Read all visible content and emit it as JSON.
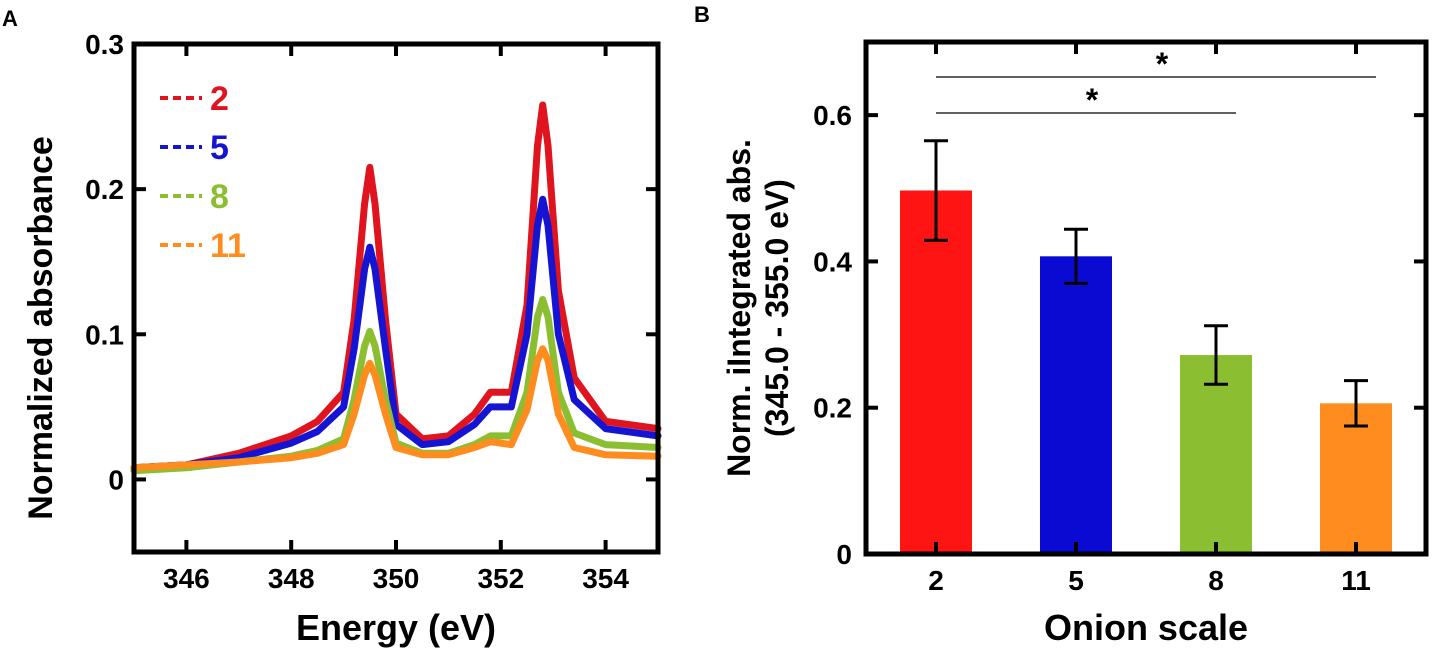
{
  "chart_data": [
    {
      "type": "line",
      "panel_label": "A",
      "title": "",
      "xlabel": "Energy (eV)",
      "ylabel": "Normalized absorbance",
      "xlim": [
        345,
        355
      ],
      "ylim": [
        -0.05,
        0.3
      ],
      "x_ticks": [
        346,
        348,
        350,
        352,
        354
      ],
      "y_ticks": [
        0,
        0.1,
        0.2,
        0.3
      ],
      "x_tick_labels": [
        "346",
        "348",
        "350",
        "352",
        "354"
      ],
      "y_tick_labels": [
        "0",
        "0.1",
        "0.2",
        "0.3"
      ],
      "grid": false,
      "legend_position": "top-left",
      "series": [
        {
          "name": "2",
          "color": "#e0141e",
          "x": [
            345.0,
            346.0,
            347.0,
            348.0,
            348.5,
            349.0,
            349.2,
            349.4,
            349.5,
            349.6,
            349.8,
            350.0,
            350.5,
            351.0,
            351.5,
            351.8,
            352.2,
            352.5,
            352.7,
            352.8,
            352.9,
            353.1,
            353.4,
            354.0,
            355.0
          ],
          "y": [
            0.008,
            0.01,
            0.018,
            0.03,
            0.04,
            0.06,
            0.11,
            0.19,
            0.215,
            0.19,
            0.11,
            0.045,
            0.028,
            0.03,
            0.045,
            0.06,
            0.06,
            0.12,
            0.23,
            0.258,
            0.23,
            0.13,
            0.07,
            0.04,
            0.035
          ]
        },
        {
          "name": "5",
          "color": "#1414d2",
          "x": [
            345.0,
            346.0,
            347.0,
            348.0,
            348.5,
            349.0,
            349.2,
            349.4,
            349.5,
            349.6,
            349.8,
            350.0,
            350.5,
            351.0,
            351.5,
            351.8,
            352.2,
            352.5,
            352.7,
            352.8,
            352.9,
            353.1,
            353.4,
            354.0,
            355.0
          ],
          "y": [
            0.008,
            0.01,
            0.015,
            0.025,
            0.033,
            0.05,
            0.09,
            0.145,
            0.16,
            0.145,
            0.09,
            0.038,
            0.024,
            0.026,
            0.038,
            0.05,
            0.05,
            0.1,
            0.175,
            0.193,
            0.175,
            0.1,
            0.055,
            0.035,
            0.03
          ]
        },
        {
          "name": "8",
          "color": "#8cbe32",
          "x": [
            345.0,
            346.0,
            347.0,
            348.0,
            348.5,
            349.0,
            349.2,
            349.4,
            349.5,
            349.6,
            349.8,
            350.0,
            350.5,
            351.0,
            351.5,
            351.8,
            352.2,
            352.5,
            352.7,
            352.8,
            352.9,
            353.1,
            353.4,
            354.0,
            355.0
          ],
          "y": [
            0.006,
            0.008,
            0.012,
            0.016,
            0.02,
            0.028,
            0.055,
            0.092,
            0.102,
            0.092,
            0.055,
            0.025,
            0.018,
            0.018,
            0.024,
            0.03,
            0.03,
            0.06,
            0.112,
            0.124,
            0.112,
            0.06,
            0.032,
            0.024,
            0.022
          ]
        },
        {
          "name": "11",
          "color": "#ff8c1e",
          "x": [
            345.0,
            346.0,
            347.0,
            348.0,
            348.5,
            349.0,
            349.2,
            349.4,
            349.5,
            349.6,
            349.8,
            350.0,
            350.5,
            351.0,
            351.5,
            351.8,
            352.2,
            352.5,
            352.7,
            352.8,
            352.9,
            353.1,
            353.4,
            354.0,
            355.0
          ],
          "y": [
            0.008,
            0.01,
            0.012,
            0.015,
            0.018,
            0.024,
            0.045,
            0.072,
            0.08,
            0.072,
            0.045,
            0.022,
            0.017,
            0.017,
            0.022,
            0.026,
            0.024,
            0.048,
            0.082,
            0.09,
            0.082,
            0.045,
            0.022,
            0.017,
            0.016
          ]
        }
      ]
    },
    {
      "type": "bar",
      "panel_label": "B",
      "title": "",
      "xlabel": "Onion scale",
      "ylabel_line1": "Norm. iIntegrated abs.",
      "ylabel_line2": "(345.0 - 355.0 eV)",
      "categories": [
        "2",
        "5",
        "8",
        "11"
      ],
      "values": [
        0.497,
        0.407,
        0.272,
        0.206
      ],
      "errors": [
        0.068,
        0.037,
        0.04,
        0.031
      ],
      "colors": [
        "#ff1414",
        "#0a0ad2",
        "#8cbe32",
        "#ff8c1e"
      ],
      "ylim": [
        0,
        0.7
      ],
      "y_ticks": [
        0,
        0.2,
        0.4,
        0.6
      ],
      "y_tick_labels": [
        "0",
        "0.2",
        "0.4",
        "0.6"
      ],
      "grid": false,
      "significance": [
        {
          "from": "2",
          "to": "11",
          "label": "*"
        },
        {
          "from": "2",
          "to": "8",
          "label": "*"
        }
      ]
    }
  ]
}
